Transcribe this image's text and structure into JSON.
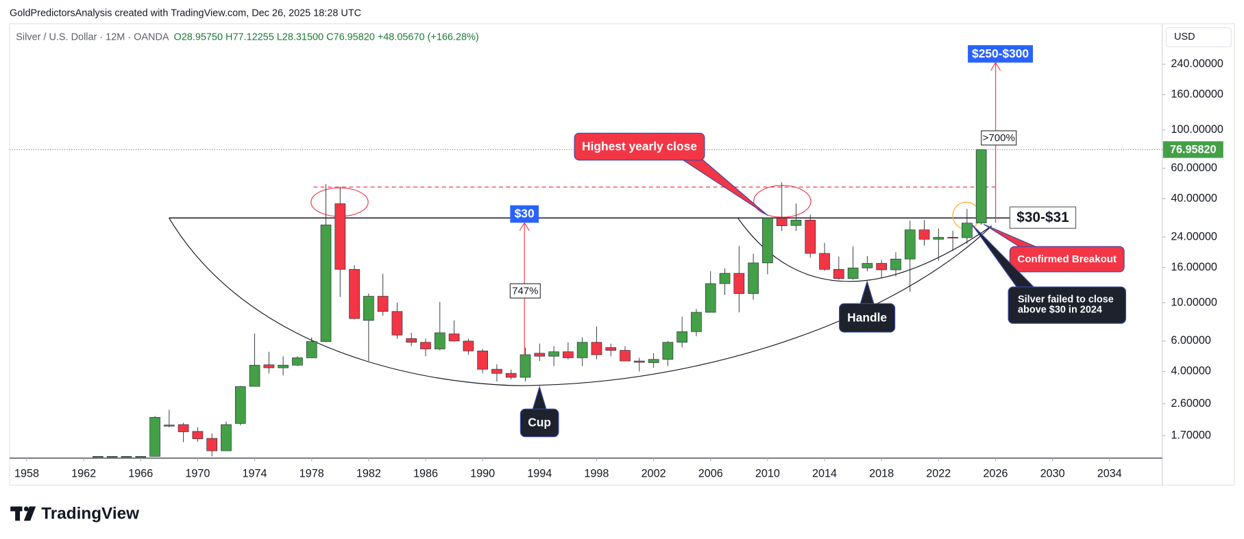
{
  "header": {
    "attribution": "GoldPredictorsAnalysis created with TradingView.com, Dec 26, 2025 18:28 UTC"
  },
  "footer": {
    "brand": "TradingView"
  },
  "chart_data": {
    "type": "candlestick",
    "title": "Silver / U.S. Dollar · 12M · OANDA",
    "ohlc_summary": "O28.95750 H77.12255 L28.31500 C76.95820 +48.05670 (+166.28%)",
    "currency": "USD",
    "up_color": "#43a047",
    "down_color": "#f23645",
    "log_scale": true,
    "x": [
      1963,
      1964,
      1965,
      1966,
      1967,
      1968,
      1969,
      1970,
      1971,
      1972,
      1973,
      1974,
      1975,
      1976,
      1977,
      1978,
      1979,
      1980,
      1981,
      1982,
      1983,
      1984,
      1985,
      1986,
      1987,
      1988,
      1989,
      1990,
      1991,
      1992,
      1993,
      1994,
      1995,
      1996,
      1997,
      1998,
      1999,
      2000,
      2001,
      2002,
      2003,
      2004,
      2005,
      2006,
      2007,
      2008,
      2009,
      2010,
      2011,
      2012,
      2013,
      2014,
      2015,
      2016,
      2017,
      2018,
      2019,
      2020,
      2021,
      2022,
      2023,
      2024,
      2025
    ],
    "open": [
      1.28,
      1.29,
      1.29,
      1.29,
      1.29,
      1.93,
      1.97,
      1.8,
      1.64,
      1.39,
      2.0,
      3.28,
      4.37,
      4.2,
      4.35,
      4.8,
      5.96,
      37.4,
      15.6,
      7.9,
      10.9,
      8.9,
      6.2,
      5.9,
      5.4,
      6.6,
      6.0,
      5.26,
      4.12,
      3.9,
      3.7,
      5.1,
      4.9,
      5.2,
      4.8,
      5.9,
      5.5,
      5.3,
      4.6,
      4.5,
      4.7,
      5.9,
      6.8,
      8.8,
      12.9,
      14.8,
      11.3,
      17.0,
      30.9,
      28.0,
      30.1,
      19.3,
      15.6,
      13.8,
      15.9,
      16.9,
      15.5,
      17.9,
      26.4,
      23.3,
      23.9,
      23.8,
      28.9575
    ],
    "high": [
      1.29,
      1.29,
      1.29,
      1.29,
      2.21,
      2.4,
      2.02,
      1.9,
      1.75,
      2.05,
      3.3,
      6.63,
      5.2,
      4.9,
      4.9,
      6.3,
      48.5,
      47,
      16.5,
      11.3,
      14.7,
      10,
      6.7,
      6.2,
      10.1,
      7.9,
      6.2,
      5.4,
      4.4,
      4.1,
      5.5,
      5.8,
      5.6,
      5.9,
      6.3,
      7.3,
      5.8,
      5.6,
      4.8,
      5.1,
      6.0,
      8.3,
      9.2,
      15.2,
      15.8,
      21.3,
      19.2,
      31.0,
      49.8,
      37.5,
      32.4,
      22.2,
      18.5,
      21.2,
      18.6,
      17.7,
      19.6,
      29.8,
      30.1,
      26.9,
      26.1,
      34.9,
      77.12255
    ],
    "low": [
      1.28,
      1.29,
      1.29,
      1.29,
      1.29,
      1.9,
      1.56,
      1.57,
      1.29,
      1.39,
      1.95,
      3.27,
      3.9,
      3.8,
      4.3,
      4.8,
      5.9,
      10.8,
      8.0,
      4.6,
      8.4,
      6.2,
      5.6,
      4.9,
      5.3,
      6.0,
      5.0,
      3.9,
      3.5,
      3.6,
      3.5,
      4.6,
      4.3,
      4.7,
      4.3,
      4.7,
      4.9,
      4.6,
      4.0,
      4.2,
      4.3,
      5.5,
      6.4,
      8.8,
      11.1,
      8.8,
      10.4,
      14.6,
      26,
      26,
      18.2,
      15.3,
      13.6,
      13.6,
      15.2,
      13.9,
      14.2,
      11.6,
      21.4,
      17.5,
      19.9,
      21.9,
      28.315
    ],
    "close": [
      1.29,
      1.29,
      1.29,
      1.29,
      2.17,
      1.96,
      1.79,
      1.63,
      1.39,
      1.97,
      3.27,
      4.35,
      4.2,
      4.35,
      4.8,
      5.96,
      28.2,
      15.6,
      8.1,
      10.9,
      8.9,
      6.5,
      5.9,
      5.4,
      6.7,
      6.0,
      5.26,
      4.12,
      3.9,
      3.7,
      5.0,
      4.9,
      5.2,
      4.8,
      5.9,
      5.0,
      5.3,
      4.6,
      4.52,
      4.7,
      5.9,
      6.8,
      8.8,
      12.9,
      14.8,
      11.3,
      17.0,
      30.9,
      27.9,
      30.1,
      19.3,
      15.6,
      13.8,
      15.9,
      16.9,
      15.5,
      17.9,
      26.4,
      23.3,
      23.9,
      23.8,
      28.9,
      76.9582
    ],
    "xlim": [
      1956.8,
      2037.7
    ],
    "xticks": [
      1958,
      1962,
      1966,
      1970,
      1974,
      1978,
      1982,
      1986,
      1990,
      1994,
      1998,
      2002,
      2006,
      2010,
      2014,
      2018,
      2022,
      2026,
      2030,
      2034
    ],
    "ylim": [
      1.26,
      403
    ],
    "yticks": [
      {
        "value": 1.7,
        "label": "1.70000"
      },
      {
        "value": 2.6,
        "label": "2.60000"
      },
      {
        "value": 4,
        "label": "4.00000"
      },
      {
        "value": 6,
        "label": "6.00000"
      },
      {
        "value": 10,
        "label": "10.00000"
      },
      {
        "value": 16,
        "label": "16.00000"
      },
      {
        "value": 24,
        "label": "24.00000"
      },
      {
        "value": 40,
        "label": "40.00000"
      },
      {
        "value": 60,
        "label": "60.00000"
      },
      {
        "value": 100,
        "label": "100.00000"
      },
      {
        "value": 160,
        "label": "160.00000"
      },
      {
        "value": 240,
        "label": "240.00000"
      }
    ],
    "last_price": {
      "value": 76.9582,
      "label": "76.95820"
    },
    "annotations": {
      "level_30": "$30",
      "target": "$250-$300",
      "breakout_zone": "$30-$31",
      "gain_1993": "747%",
      "gain_2025": ">700%",
      "highest_close": "Highest yearly close",
      "breakout": "Confirmed Breakout",
      "failed_2024": [
        "Silver failed to close",
        "above $30 in 2024"
      ],
      "cup": "Cup",
      "handle": "Handle"
    }
  }
}
